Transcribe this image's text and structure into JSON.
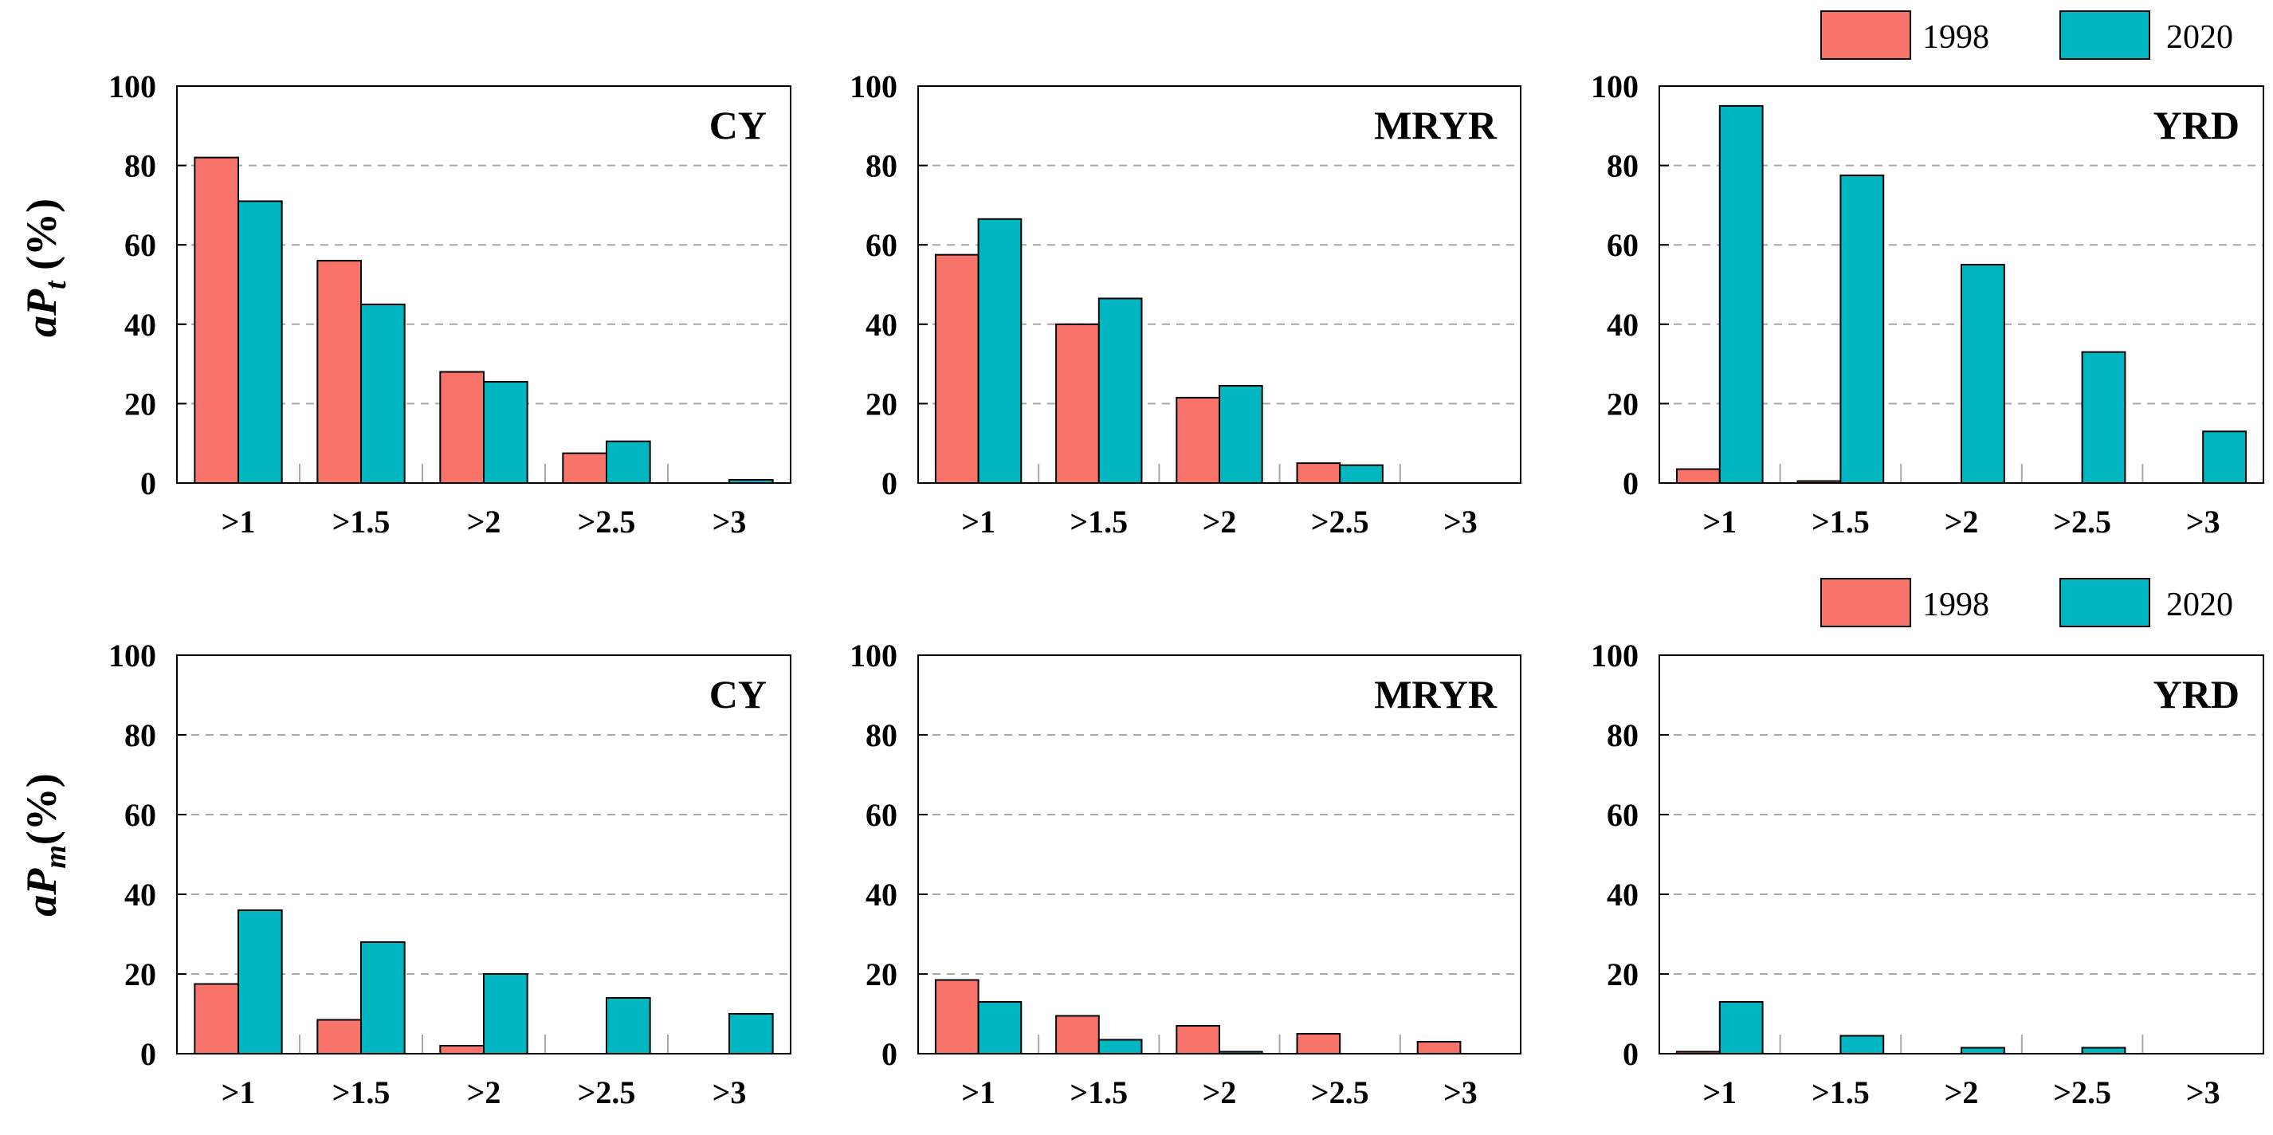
{
  "chart_data": [
    {
      "type": "bar",
      "title": "CY",
      "ylabel": "aPt (%)",
      "categories": [
        ">1",
        ">1.5",
        ">2",
        ">2.5",
        ">3"
      ],
      "series": [
        {
          "name": "1998",
          "values": [
            82,
            56,
            28,
            7.5,
            0
          ]
        },
        {
          "name": "2020",
          "values": [
            71,
            45,
            25.5,
            10.5,
            0.8
          ]
        }
      ],
      "ylim": [
        0,
        100
      ],
      "yticks": [
        "0",
        "20",
        "40",
        "60",
        "80",
        "100"
      ]
    },
    {
      "type": "bar",
      "title": "MRYR",
      "categories": [
        ">1",
        ">1.5",
        ">2",
        ">2.5",
        ">3"
      ],
      "series": [
        {
          "name": "1998",
          "values": [
            57.5,
            40,
            21.5,
            5,
            0
          ]
        },
        {
          "name": "2020",
          "values": [
            66.5,
            46.5,
            24.5,
            4.5,
            0
          ]
        }
      ],
      "ylim": [
        0,
        100
      ],
      "yticks": [
        "0",
        "20",
        "40",
        "60",
        "80",
        "100"
      ]
    },
    {
      "type": "bar",
      "title": "YRD",
      "categories": [
        ">1",
        ">1.5",
        ">2",
        ">2.5",
        ">3"
      ],
      "series": [
        {
          "name": "1998",
          "values": [
            3.5,
            0.5,
            0,
            0,
            0
          ]
        },
        {
          "name": "2020",
          "values": [
            95,
            77.5,
            55,
            33,
            13
          ]
        }
      ],
      "ylim": [
        0,
        100
      ],
      "yticks": [
        "0",
        "20",
        "40",
        "60",
        "80",
        "100"
      ]
    },
    {
      "type": "bar",
      "title": "CY",
      "ylabel": "aPm(%)",
      "categories": [
        ">1",
        ">1.5",
        ">2",
        ">2.5",
        ">3"
      ],
      "series": [
        {
          "name": "1998",
          "values": [
            17.5,
            8.5,
            2,
            0,
            0
          ]
        },
        {
          "name": "2020",
          "values": [
            36,
            28,
            20,
            14,
            10
          ]
        }
      ],
      "ylim": [
        0,
        100
      ],
      "yticks": [
        "0",
        "20",
        "40",
        "60",
        "80",
        "100"
      ]
    },
    {
      "type": "bar",
      "title": "MRYR",
      "categories": [
        ">1",
        ">1.5",
        ">2",
        ">2.5",
        ">3"
      ],
      "series": [
        {
          "name": "1998",
          "values": [
            18.5,
            9.5,
            7,
            5,
            3
          ]
        },
        {
          "name": "2020",
          "values": [
            13,
            3.5,
            0.5,
            0,
            0
          ]
        }
      ],
      "ylim": [
        0,
        100
      ],
      "yticks": [
        "0",
        "20",
        "40",
        "60",
        "80",
        "100"
      ]
    },
    {
      "type": "bar",
      "title": "YRD",
      "categories": [
        ">1",
        ">1.5",
        ">2",
        ">2.5",
        ">3"
      ],
      "series": [
        {
          "name": "1998",
          "values": [
            0.5,
            0,
            0,
            0,
            0
          ]
        },
        {
          "name": "2020",
          "values": [
            13,
            4.5,
            1.5,
            1.5,
            0
          ]
        }
      ],
      "ylim": [
        0,
        100
      ],
      "yticks": [
        "0",
        "20",
        "40",
        "60",
        "80",
        "100"
      ]
    }
  ],
  "ylabels": {
    "top": {
      "main": "aP",
      "sub": "t",
      "unit": " (%)"
    },
    "bottom": {
      "main": "aP",
      "sub": "m",
      "unit": "(%)"
    }
  },
  "legends": [
    {
      "items": [
        {
          "label": "1998"
        },
        {
          "label": "2020"
        }
      ]
    },
    {
      "items": [
        {
          "label": "1998"
        },
        {
          "label": "2020"
        }
      ]
    }
  ],
  "colors": {
    "s1998": "#f8746b",
    "s2020": "#00b6c0",
    "grid": "#a8a8a8",
    "axis": "#000000"
  }
}
